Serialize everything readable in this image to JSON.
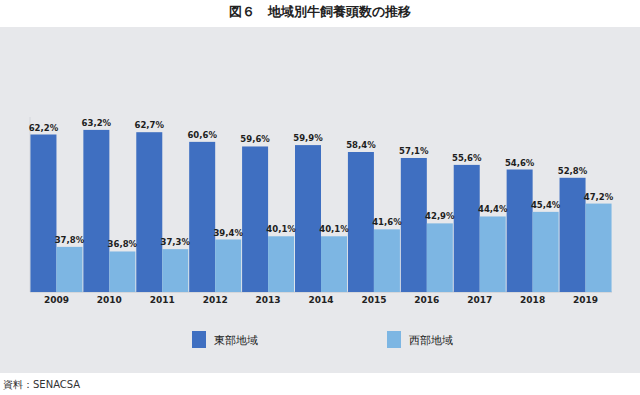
{
  "chart_data": {
    "type": "bar",
    "title": "図６　地域別牛飼養頭数の推移",
    "source": "資料：SENACSA",
    "categories": [
      "2009",
      "2010",
      "2011",
      "2012",
      "2013",
      "2014",
      "2015",
      "2016",
      "2017",
      "2018",
      "2019"
    ],
    "series": [
      {
        "name": "東部地域",
        "color": "#3f6fc1",
        "values": [
          62.2,
          63.2,
          62.7,
          60.6,
          59.6,
          59.9,
          58.4,
          57.1,
          55.6,
          54.6,
          52.8
        ],
        "value_labels": [
          "62,2%",
          "63,2%",
          "62,7%",
          "60,6%",
          "59,6%",
          "59,9%",
          "58,4%",
          "57,1%",
          "55,6%",
          "54,6%",
          "52,8%"
        ]
      },
      {
        "name": "西部地域",
        "color": "#7db6e3",
        "values": [
          37.8,
          36.8,
          37.3,
          39.4,
          40.1,
          40.1,
          41.6,
          42.9,
          44.4,
          45.4,
          47.2
        ],
        "value_labels": [
          "37,8%",
          "36,8%",
          "37,3%",
          "39,4%",
          "40,1%",
          "40,1%",
          "41,6%",
          "42,9%",
          "44,4%",
          "45,4%",
          "47,2%"
        ]
      }
    ],
    "ylim": [
      28,
      66
    ],
    "data_labels": true,
    "tick_labels": "x",
    "grid": false,
    "legend": "bottom"
  }
}
